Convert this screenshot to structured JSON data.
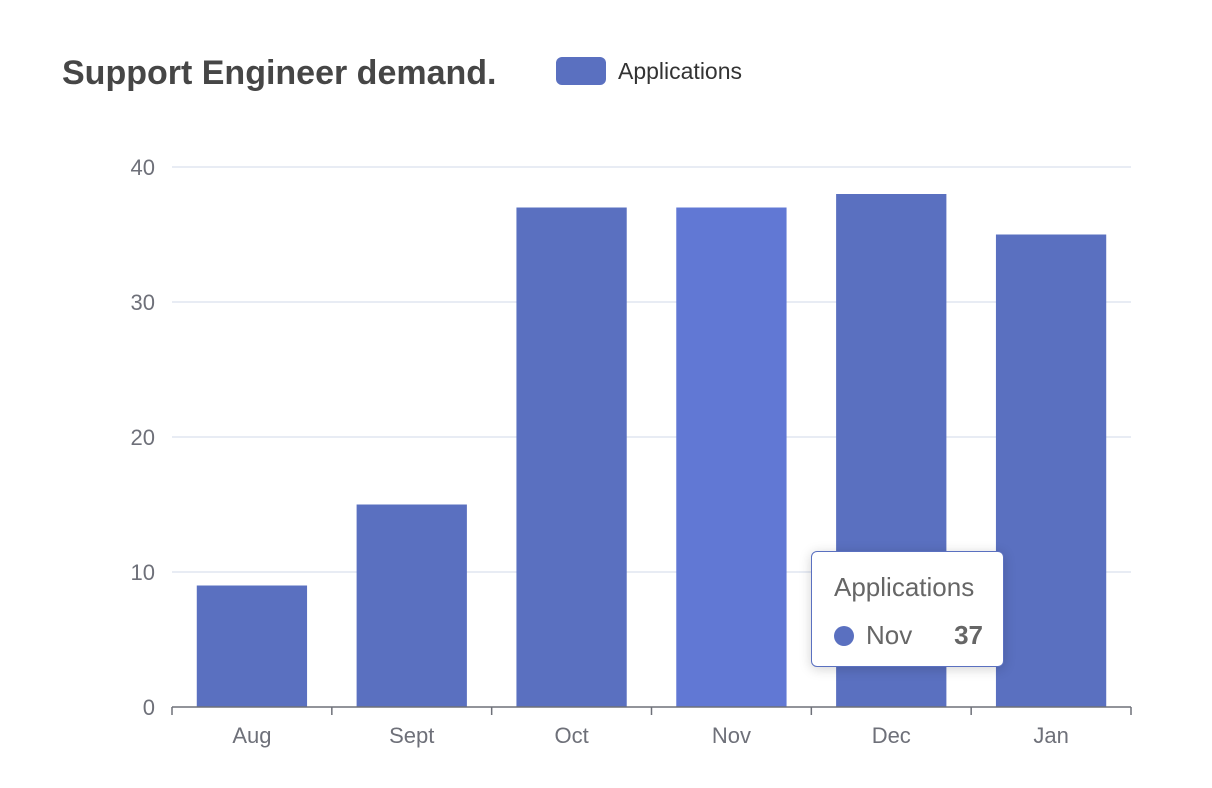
{
  "chart_data": {
    "type": "bar",
    "title": "Support Engineer demand.",
    "legend": {
      "label": "Applications",
      "position": "top"
    },
    "categories": [
      "Aug",
      "Sept",
      "Oct",
      "Nov",
      "Dec",
      "Jan"
    ],
    "series": [
      {
        "name": "Applications",
        "values": [
          9,
          15,
          37,
          37,
          38,
          35
        ]
      }
    ],
    "ylim": [
      0,
      40
    ],
    "yticks": [
      "0",
      "10",
      "20",
      "30",
      "40"
    ],
    "grid": true,
    "colors": {
      "bar": "#5a70c0",
      "bar_highlight": "#6178d4",
      "grid": "#e0e6f1",
      "axis": "#6e7079",
      "label": "#6e7079"
    },
    "highlighted_index": 3
  },
  "tooltip": {
    "title": "Applications",
    "category": "Nov",
    "value": "37"
  }
}
